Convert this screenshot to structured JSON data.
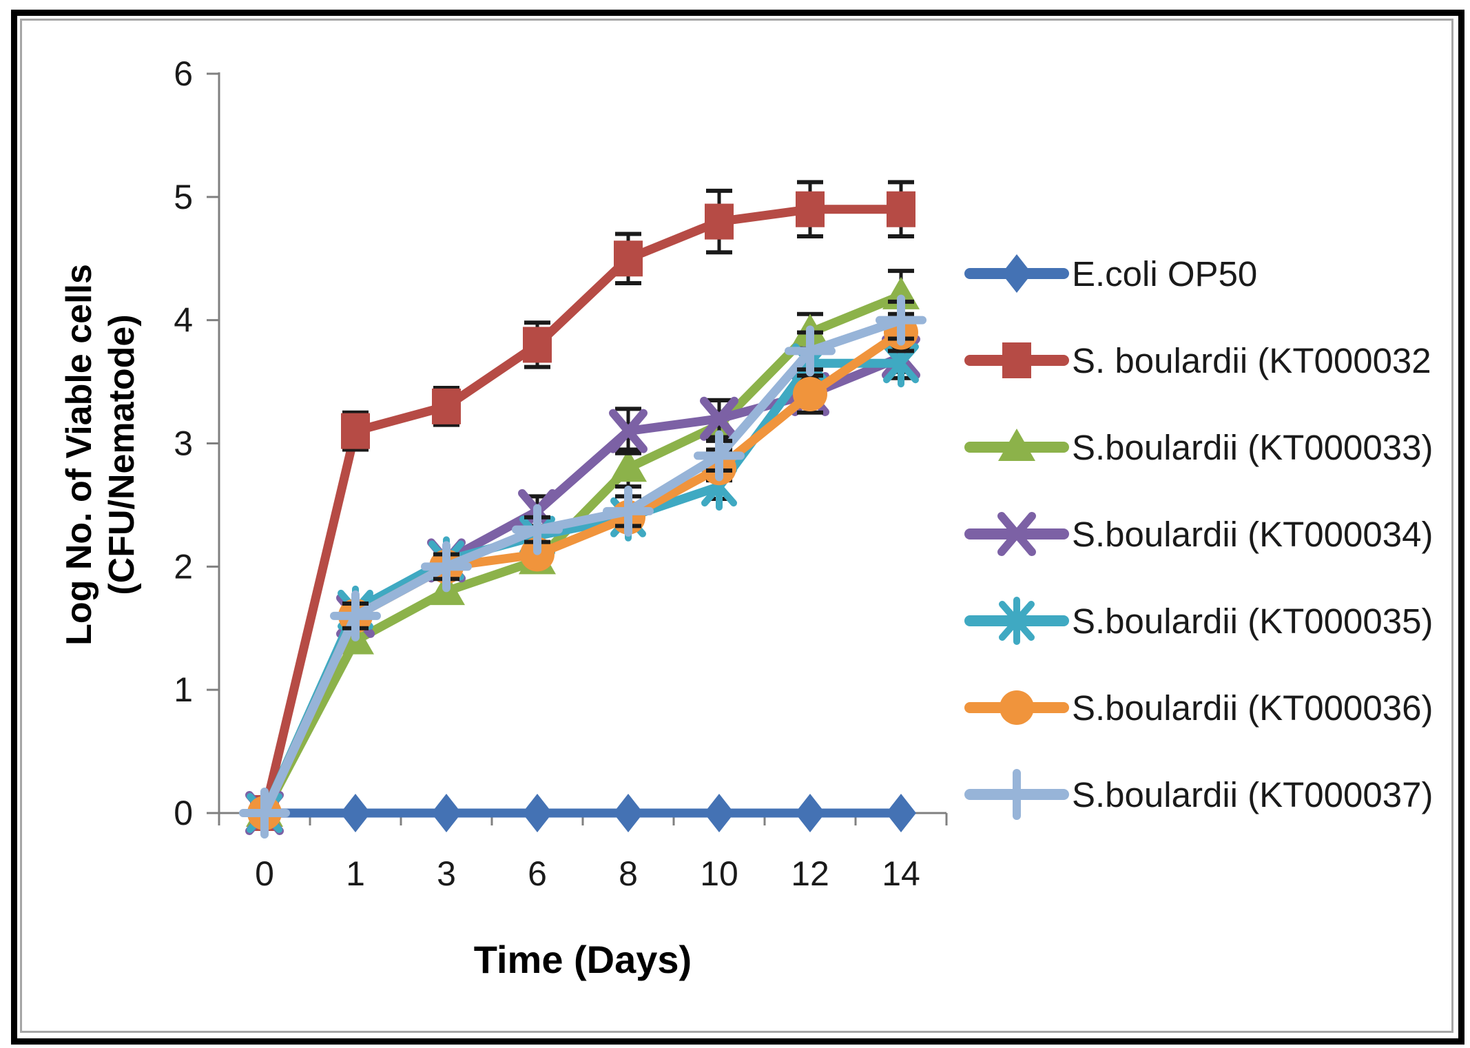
{
  "page": {
    "background": "#ffffff",
    "frame_border_color": "#000000",
    "inner_border_color": "#a6a6a6"
  },
  "chart_data": {
    "type": "line",
    "title": "",
    "xlabel": "Time (Days)",
    "ylabel_line1": "Log No. of Viable cells",
    "ylabel_line2": "(CFU/Nematode)",
    "x_categories": [
      "0",
      "1",
      "3",
      "6",
      "8",
      "10",
      "12",
      "14"
    ],
    "y_ticks": [
      "0",
      "1",
      "2",
      "3",
      "4",
      "5",
      "6"
    ],
    "ylim": [
      0,
      6
    ],
    "grid": "off",
    "legend_position": "right",
    "axis_color": "#808080",
    "error_bar_color": "#1a1a1a",
    "tick_label_color": "#1a1a1a",
    "series": [
      {
        "name": "E.coli OP50",
        "color": "#4472b4",
        "marker": "diamond",
        "values": [
          0,
          0,
          0,
          0,
          0,
          0,
          0,
          0
        ],
        "errors": [
          0,
          0,
          0,
          0,
          0,
          0,
          0,
          0
        ]
      },
      {
        "name": "S. boulardii (KT000032",
        "color": "#b64b45",
        "marker": "square",
        "values": [
          0,
          3.1,
          3.3,
          3.8,
          4.5,
          4.8,
          4.9,
          4.9
        ],
        "errors": [
          0,
          0.15,
          0.15,
          0.18,
          0.2,
          0.25,
          0.22,
          0.22
        ]
      },
      {
        "name": "S.boulardii (KT000033)",
        "color": "#8cb24a",
        "marker": "triangle",
        "values": [
          0,
          1.4,
          1.8,
          2.05,
          2.8,
          3.15,
          3.9,
          4.2
        ],
        "errors": [
          0,
          0,
          0,
          0,
          0.15,
          0.2,
          0.15,
          0.2
        ]
      },
      {
        "name": "S.boulardii (KT000034)",
        "color": "#7c61a5",
        "marker": "x",
        "values": [
          0,
          1.6,
          2.05,
          2.45,
          3.1,
          3.2,
          3.4,
          3.7
        ],
        "errors": [
          0,
          0,
          0,
          0.12,
          0.18,
          0.15,
          0,
          0.12
        ]
      },
      {
        "name": "S.boulardii (KT000035)",
        "color": "#3fa9c2",
        "marker": "asterisk",
        "values": [
          0,
          1.65,
          2.05,
          2.25,
          2.4,
          2.65,
          3.65,
          3.65
        ],
        "errors": [
          0,
          0,
          0,
          0,
          0,
          0.1,
          0.12,
          0.12
        ]
      },
      {
        "name": "S.boulardii (KT000036)",
        "color": "#f0943c",
        "marker": "circle",
        "values": [
          0,
          1.6,
          2.0,
          2.1,
          2.4,
          2.8,
          3.4,
          3.9
        ],
        "errors": [
          0,
          0,
          0,
          0,
          0,
          0.1,
          0.15,
          0.15
        ]
      },
      {
        "name": "S.boulardii (KT000037)",
        "color": "#97b4d8",
        "marker": "plus",
        "values": [
          0,
          1.6,
          2.0,
          2.3,
          2.45,
          2.9,
          3.75,
          4.0
        ],
        "errors": [
          0,
          0.1,
          0.1,
          0.1,
          0.12,
          0.12,
          0.15,
          0.15
        ]
      }
    ]
  }
}
